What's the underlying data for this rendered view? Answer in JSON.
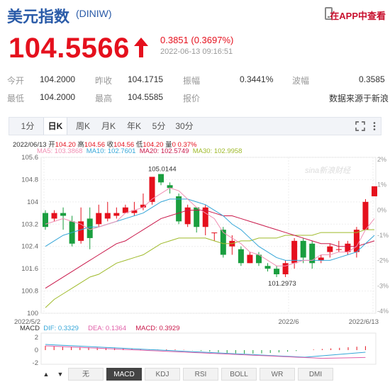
{
  "header": {
    "title": "美元指数",
    "code": "(DINIW)",
    "app_link": "在APP中查看"
  },
  "quote": {
    "price": "104.5566",
    "change": "0.3851 (0.3697%)",
    "timestamp": "2022-06-13 09:16:51"
  },
  "stats": [
    {
      "label": "今开",
      "value": "104.2000"
    },
    {
      "label": "昨收",
      "value": "104.1715"
    },
    {
      "label": "振幅",
      "value": "0.3441%"
    },
    {
      "label": "波幅",
      "value": "0.3585"
    },
    {
      "label": "最低",
      "value": "104.2000"
    },
    {
      "label": "最高",
      "value": "104.5585"
    },
    {
      "label": "报价",
      "value": ""
    },
    {
      "label": "",
      "value": "数据来源于新浪"
    }
  ],
  "tabs": [
    "1分",
    "日K",
    "周K",
    "月K",
    "年K",
    "5分",
    "30分"
  ],
  "active_tab": "日K",
  "kline_info": {
    "date": "2022/06/13",
    "open_label": "开",
    "open": "104.20",
    "high_label": "高",
    "high": "104.56",
    "close_label": "收",
    "close": "104.56",
    "low_label": "低",
    "low": "104.20",
    "volume_label": "量",
    "volume": "0",
    "pct": "0.37%",
    "ma5": "MA5: 103.3868",
    "ma10": "MA10: 102.7601",
    "ma20": "MA20: 102.5749",
    "ma30": "MA30: 102.9958"
  },
  "colors": {
    "up": "#e5101d",
    "down": "#1a9e3f",
    "ma5": "#f08fb3",
    "ma10": "#35a6d8",
    "ma20": "#c9184a",
    "ma30": "#9fba2a",
    "dif": "#35a6d8",
    "dea": "#e05fa8",
    "macd": "#c9184a"
  },
  "watermark": "sina新浪财经",
  "chart_data": {
    "type": "candlestick",
    "y_ticks": [
      "105.6",
      "104.8",
      "104",
      "103.2",
      "102.4",
      "101.6",
      "100.8",
      "100"
    ],
    "pct_ticks": [
      "2%",
      "1%",
      "0%",
      "-1%",
      "-2%",
      "-3%",
      "-4%"
    ],
    "ylim": [
      100,
      105.6
    ],
    "x_labels": [
      "2022/5/2",
      "2022/6",
      "2022/6/13"
    ],
    "annotations": {
      "high": "105.0144",
      "low": "101.2973"
    },
    "candles": [
      {
        "o": 103.6,
        "c": 103.1,
        "h": 103.7,
        "l": 103.0
      },
      {
        "o": 103.4,
        "c": 103.6,
        "h": 103.7,
        "l": 103.3
      },
      {
        "o": 103.6,
        "c": 103.5,
        "h": 103.8,
        "l": 103.0
      },
      {
        "o": 103.3,
        "c": 102.5,
        "h": 103.5,
        "l": 102.4
      },
      {
        "o": 102.6,
        "c": 103.3,
        "h": 103.8,
        "l": 102.5
      },
      {
        "o": 103.4,
        "c": 102.7,
        "h": 103.8,
        "l": 102.3
      },
      {
        "o": 103.2,
        "c": 103.6,
        "h": 103.9,
        "l": 103.1
      },
      {
        "o": 103.4,
        "c": 103.6,
        "h": 104.0,
        "l": 103.3
      },
      {
        "o": 103.5,
        "c": 103.6,
        "h": 103.8,
        "l": 103.4
      },
      {
        "o": 103.6,
        "c": 103.8,
        "h": 103.9,
        "l": 103.6
      },
      {
        "o": 103.6,
        "c": 103.7,
        "h": 104.0,
        "l": 103.5
      },
      {
        "o": 103.8,
        "c": 103.9,
        "h": 104.3,
        "l": 103.7
      },
      {
        "o": 104.0,
        "c": 104.9,
        "h": 104.9,
        "l": 103.9
      },
      {
        "o": 105.0,
        "c": 104.7,
        "h": 105.0,
        "l": 104.6
      },
      {
        "o": 104.6,
        "c": 104.5,
        "h": 104.7,
        "l": 104.3
      },
      {
        "o": 104.2,
        "c": 103.3,
        "h": 104.3,
        "l": 103.2
      },
      {
        "o": 103.2,
        "c": 103.8,
        "h": 103.9,
        "l": 103.1
      },
      {
        "o": 103.8,
        "c": 103.1,
        "h": 103.8,
        "l": 102.9
      },
      {
        "o": 103.1,
        "c": 103.8,
        "h": 103.9,
        "l": 102.8
      },
      {
        "o": 102.9,
        "c": 102.9,
        "h": 102.9,
        "l": 102.6
      },
      {
        "o": 103.0,
        "c": 102.1,
        "h": 103.1,
        "l": 102.0
      },
      {
        "o": 102.4,
        "c": 102.6,
        "h": 102.8,
        "l": 102.1
      },
      {
        "o": 102.3,
        "c": 101.8,
        "h": 102.4,
        "l": 101.7
      },
      {
        "o": 101.8,
        "c": 102.1,
        "h": 102.2,
        "l": 101.8
      },
      {
        "o": 102.1,
        "c": 101.8,
        "h": 102.2,
        "l": 101.7
      },
      {
        "o": 101.7,
        "c": 101.6,
        "h": 101.8,
        "l": 101.5
      },
      {
        "o": 101.6,
        "c": 101.4,
        "h": 101.7,
        "l": 101.3
      },
      {
        "o": 101.4,
        "c": 101.8,
        "h": 101.9,
        "l": 101.3
      },
      {
        "o": 101.8,
        "c": 102.6,
        "h": 102.7,
        "l": 101.6
      },
      {
        "o": 102.6,
        "c": 102.0,
        "h": 102.7,
        "l": 101.8
      },
      {
        "o": 102.5,
        "c": 101.8,
        "h": 102.6,
        "l": 101.6
      },
      {
        "o": 101.9,
        "c": 102.0,
        "h": 102.1,
        "l": 101.8
      },
      {
        "o": 102.2,
        "c": 102.4,
        "h": 102.5,
        "l": 102.0
      },
      {
        "o": 102.3,
        "c": 102.3,
        "h": 102.6,
        "l": 102.2
      },
      {
        "o": 102.2,
        "c": 102.5,
        "h": 102.6,
        "l": 102.1
      },
      {
        "o": 102.2,
        "c": 103.0,
        "h": 103.1,
        "l": 102.0
      },
      {
        "o": 103.0,
        "c": 104.0,
        "h": 104.1,
        "l": 103.0
      },
      {
        "o": 104.2,
        "c": 104.56,
        "h": 104.56,
        "l": 104.2
      }
    ],
    "ma5": [
      103.2,
      103.3,
      103.4,
      103.3,
      103.2,
      103.0,
      103.1,
      103.2,
      103.3,
      103.6,
      103.7,
      103.8,
      104.1,
      104.3,
      104.5,
      104.4,
      104.1,
      103.8,
      103.6,
      103.4,
      102.9,
      102.7,
      102.5,
      102.2,
      102.1,
      101.9,
      101.7,
      101.7,
      101.8,
      101.9,
      101.9,
      102.1,
      102.1,
      102.2,
      102.2,
      102.4,
      103.0,
      103.4
    ],
    "ma10": [
      102.4,
      102.6,
      102.8,
      102.9,
      103.0,
      103.1,
      103.1,
      103.2,
      103.3,
      103.4,
      103.5,
      103.6,
      103.8,
      104.0,
      104.1,
      104.1,
      104.1,
      104.0,
      103.9,
      103.7,
      103.5,
      103.2,
      103.0,
      102.7,
      102.4,
      102.2,
      102.0,
      101.9,
      101.9,
      101.9,
      101.9,
      101.9,
      101.9,
      102.0,
      102.1,
      102.2,
      102.5,
      102.8
    ],
    "ma20": [
      100.9,
      101.1,
      101.3,
      101.5,
      101.7,
      101.9,
      102.1,
      102.3,
      102.5,
      102.6,
      102.8,
      103.0,
      103.2,
      103.4,
      103.5,
      103.6,
      103.7,
      103.7,
      103.7,
      103.6,
      103.5,
      103.5,
      103.4,
      103.3,
      103.2,
      103.1,
      103.0,
      102.9,
      102.8,
      102.7,
      102.6,
      102.5,
      102.5,
      102.4,
      102.4,
      102.4,
      102.5,
      102.6
    ],
    "ma30": [
      100.2,
      100.5,
      100.7,
      100.9,
      101.1,
      101.3,
      101.4,
      101.6,
      101.8,
      101.9,
      102.0,
      102.1,
      102.3,
      102.5,
      102.6,
      102.7,
      102.7,
      102.7,
      102.7,
      102.6,
      102.5,
      102.5,
      102.6,
      102.6,
      102.7,
      102.7,
      102.7,
      102.8,
      102.8,
      102.8,
      102.8,
      102.9,
      102.9,
      102.9,
      102.9,
      102.9,
      103.0,
      103.0
    ],
    "macd": {
      "dif_label": "DIF: 0.3329",
      "dea_label": "DEA: 0.1364",
      "macd_label": "MACD: 0.3929",
      "y_ticks": [
        "2",
        "0",
        "-2"
      ]
    }
  },
  "indicator_tabs": [
    "无",
    "MACD",
    "KDJ",
    "RSI",
    "BOLL",
    "WR",
    "DMI"
  ],
  "active_indicator": "MACD"
}
